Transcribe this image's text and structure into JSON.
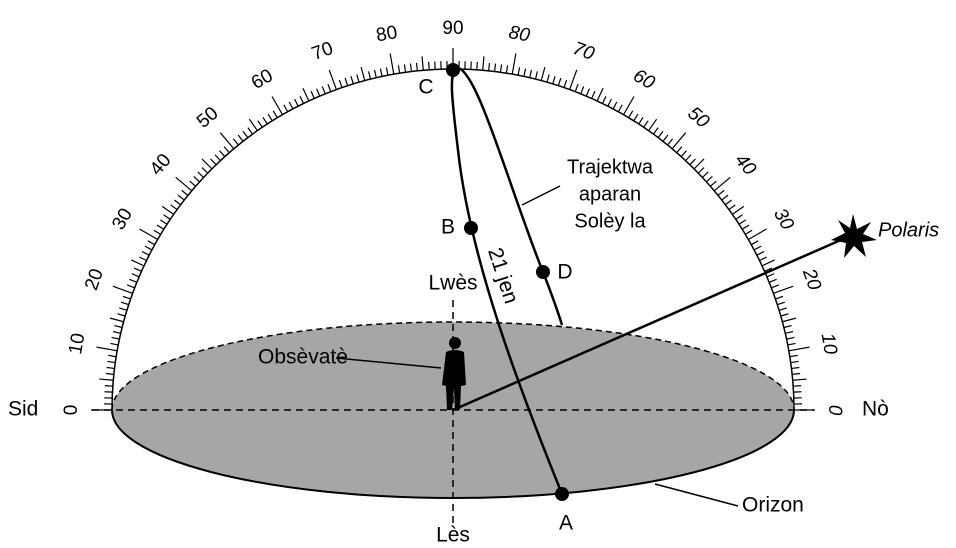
{
  "scale_left": [
    0,
    10,
    20,
    30,
    40,
    50,
    60,
    70,
    80,
    90
  ],
  "scale_right": [
    80,
    70,
    60,
    50,
    40,
    30,
    20,
    10,
    0
  ],
  "labels": {
    "south": "Sid",
    "north": "Nò",
    "west": "Lwès",
    "east": "Lès",
    "observer": "Obsèvatè",
    "horizon": "Orizon",
    "path": [
      "Trajektwa",
      "aparan",
      "Solèy la"
    ],
    "date": "21 jen",
    "polaris": "Polaris"
  },
  "points": [
    {
      "label": "A"
    },
    {
      "label": "B"
    },
    {
      "label": "C"
    },
    {
      "label": "D"
    }
  ]
}
